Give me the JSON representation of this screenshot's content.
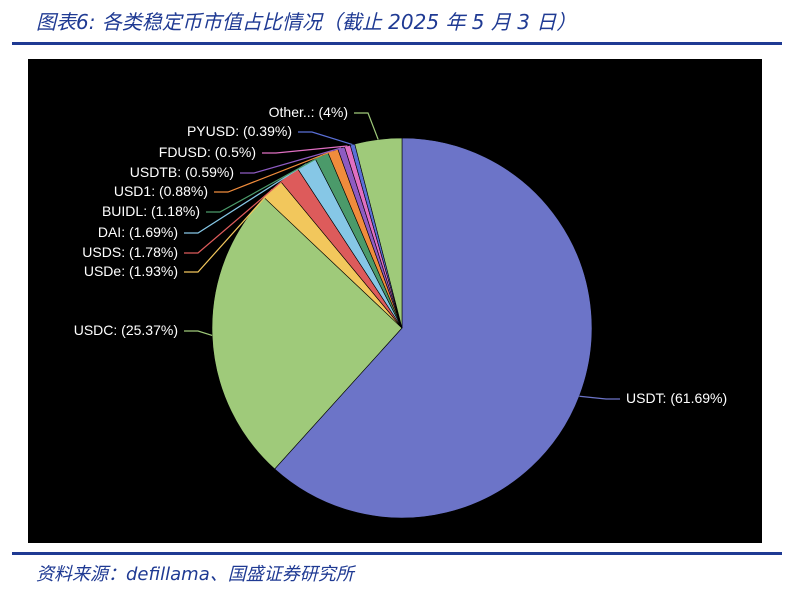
{
  "figure": {
    "title": "图表6:  各类稳定币市值占比情况（截止 2025 年 5 月 3 日）",
    "source": "资料来源：defillama、国盛证券研究所"
  },
  "chart_data": {
    "type": "pie",
    "title": "",
    "legend": "none",
    "slices": [
      {
        "name": "USDT",
        "value": 61.69,
        "label": "USDT: (61.69%)",
        "color": "#6c74c8"
      },
      {
        "name": "USDC",
        "value": 25.37,
        "label": "USDC: (25.37%)",
        "color": "#9fca7a"
      },
      {
        "name": "USDe",
        "value": 1.93,
        "label": "USDe: (1.93%)",
        "color": "#f2c75c"
      },
      {
        "name": "USDS",
        "value": 1.78,
        "label": "USDS: (1.78%)",
        "color": "#dd5b5b"
      },
      {
        "name": "DAI",
        "value": 1.69,
        "label": "DAI: (1.69%)",
        "color": "#86c7e6"
      },
      {
        "name": "BUIDL",
        "value": 1.18,
        "label": "BUIDL: (1.18%)",
        "color": "#4b9a6a"
      },
      {
        "name": "USD1",
        "value": 0.88,
        "label": "USD1: (0.88%)",
        "color": "#f08c3c"
      },
      {
        "name": "USDTB",
        "value": 0.59,
        "label": "USDTB: (0.59%)",
        "color": "#8e5bc2"
      },
      {
        "name": "FDUSD",
        "value": 0.5,
        "label": "FDUSD: (0.5%)",
        "color": "#e06fc2"
      },
      {
        "name": "PYUSD",
        "value": 0.39,
        "label": "PYUSD: (0.39%)",
        "color": "#5a6fd6"
      },
      {
        "name": "Other..",
        "value": 4,
        "label": "Other..: (4%)",
        "color": "#9fca7a"
      }
    ]
  }
}
